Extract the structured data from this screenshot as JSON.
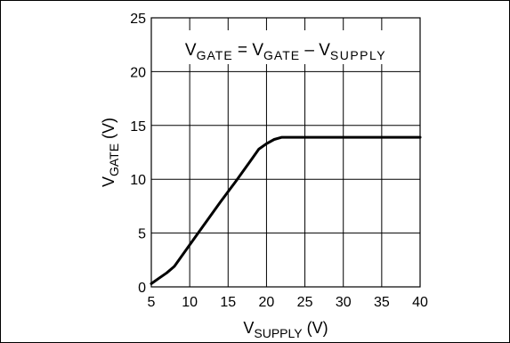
{
  "chart_data": {
    "type": "line",
    "title": "",
    "annotation": {
      "lhs_main": "V",
      "lhs_sub": "GATE",
      "eq": " = ",
      "rhs1_main": "V",
      "rhs1_sub": "GATE",
      "minus": " – ",
      "rhs2_main": "V",
      "rhs2_sub": "SUPPLY"
    },
    "xlabel": {
      "main": "V",
      "sub": "SUPPLY",
      "unit": " (V)"
    },
    "ylabel": {
      "main": "V",
      "sub": "GATE",
      "unit": " (V)"
    },
    "xlim": [
      5,
      40
    ],
    "ylim": [
      0,
      25
    ],
    "xticks": [
      "5",
      "10",
      "15",
      "20",
      "25",
      "30",
      "35",
      "40"
    ],
    "yticks": [
      "0",
      "5",
      "10",
      "15",
      "20",
      "25"
    ],
    "grid": true,
    "series": [
      {
        "x": [
          5,
          6,
          7,
          8,
          10,
          12,
          14,
          16,
          18,
          19,
          20,
          21,
          22,
          23,
          25,
          30,
          35,
          40
        ],
        "y": [
          0.3,
          0.8,
          1.3,
          1.9,
          3.9,
          5.9,
          7.9,
          9.8,
          11.8,
          12.8,
          13.3,
          13.7,
          13.9,
          13.9,
          13.9,
          13.9,
          13.9,
          13.9
        ]
      }
    ]
  }
}
